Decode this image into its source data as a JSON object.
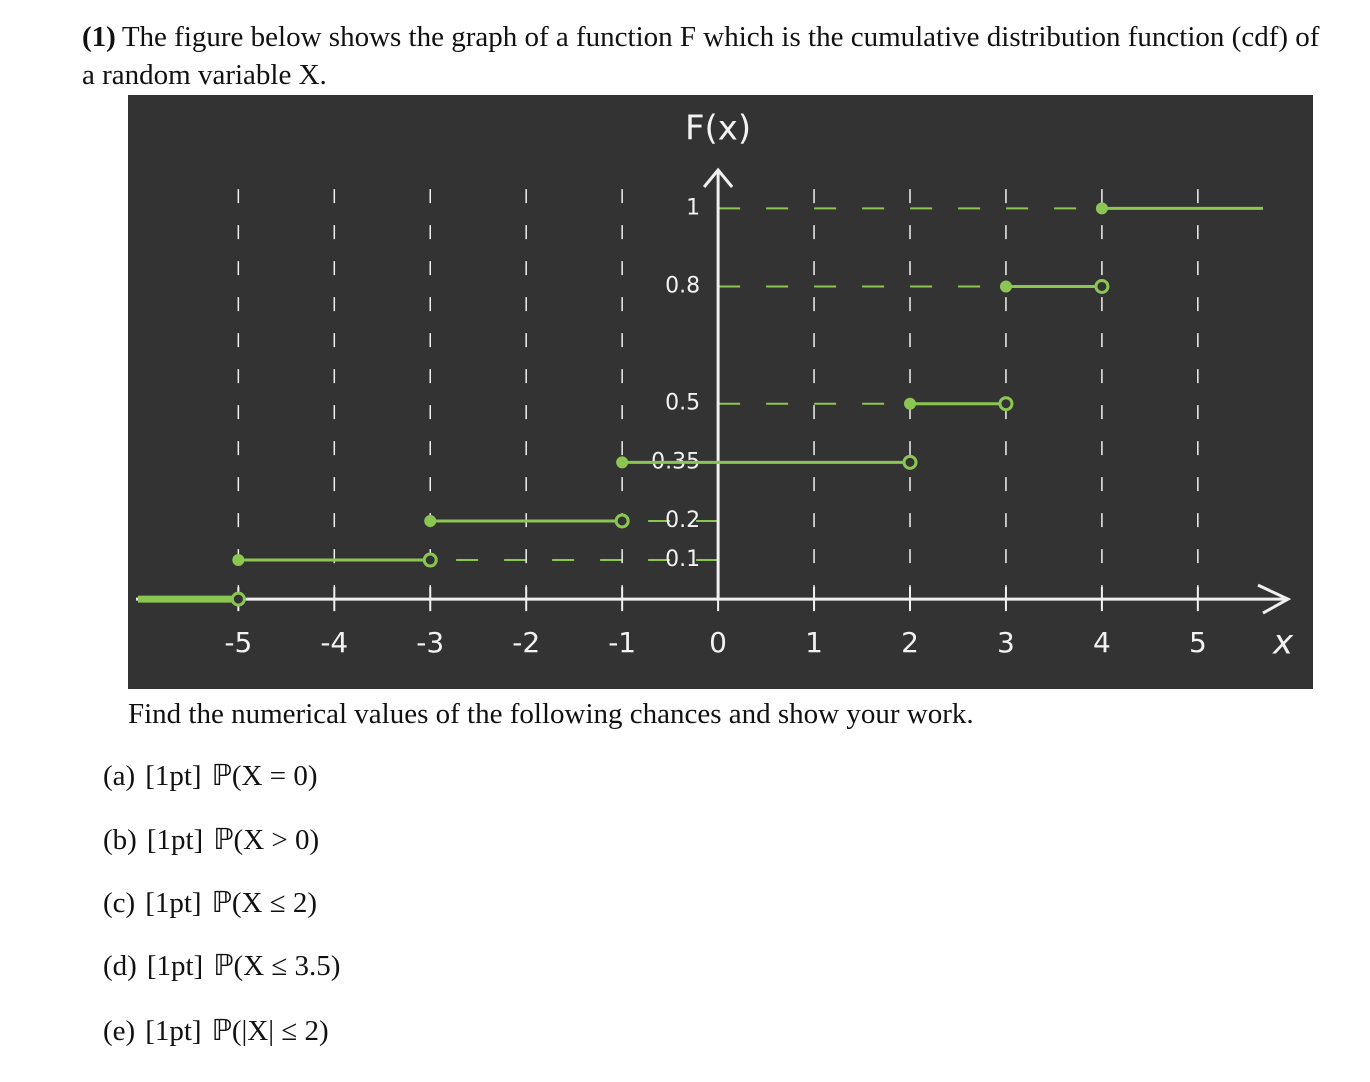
{
  "problem": {
    "number": "(1)",
    "text": "The figure below shows the graph of a function F which is the cumulative distribution function (cdf) of a random variable X."
  },
  "chart_data": {
    "type": "step",
    "y_label": "F(x)",
    "x_label": "x",
    "x": [
      -5,
      -3,
      -1,
      2,
      3,
      4
    ],
    "values": [
      0.1,
      0.2,
      0.35,
      0.5,
      0.8,
      1
    ],
    "color": "#8cc652",
    "xlim": [
      -6.15,
      6.2
    ],
    "ylim": [
      -0.23,
      1.29
    ],
    "xticks": [
      -5,
      -4,
      -3,
      -2,
      -1,
      0,
      1,
      2,
      3,
      4,
      5
    ],
    "yticks": [
      0.1,
      0.2,
      0.35,
      0.5,
      0.8,
      1
    ],
    "grid": true
  },
  "instructions": "Find the numerical values of the following chances and show your work.",
  "questions": [
    {
      "label": "(a)",
      "points": "[1pt]",
      "expr": "ℙ(X = 0)"
    },
    {
      "label": "(b)",
      "points": "[1pt]",
      "expr": "ℙ(X > 0)"
    },
    {
      "label": "(c)",
      "points": "[1pt]",
      "expr": "ℙ(X ≤ 2)"
    },
    {
      "label": "(d)",
      "points": "[1pt]",
      "expr": "ℙ(X ≤ 3.5)"
    },
    {
      "label": "(e)",
      "points": "[1pt]",
      "expr": "ℙ(|X| ≤ 2)"
    }
  ]
}
